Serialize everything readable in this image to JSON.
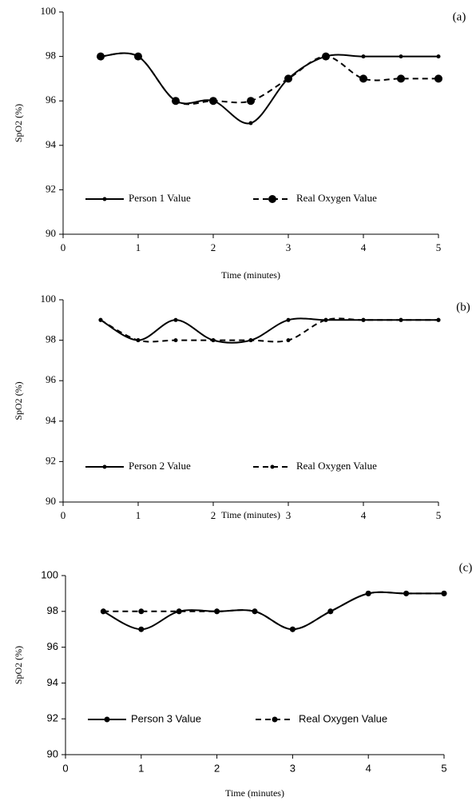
{
  "chart_data": [
    {
      "type": "line",
      "annotation": "(a)",
      "x_label": "Time (minutes)",
      "y_label": "SpO2 (%)",
      "x": [
        0.5,
        1,
        1.5,
        2,
        2.5,
        3,
        3.5,
        4,
        4.5,
        5
      ],
      "series": [
        {
          "name": "Person 1 Value",
          "color": "#000000",
          "line_style": "solid",
          "marker_size": 2.5,
          "values": [
            98,
            98,
            96,
            96,
            95,
            97,
            98,
            98,
            98,
            98
          ]
        },
        {
          "name": "Real Oxygen Value",
          "color": "#000000",
          "line_style": "dashed",
          "marker_size": 5,
          "values": [
            98,
            98,
            96,
            96,
            96,
            97,
            98,
            97,
            97,
            97
          ]
        }
      ],
      "xlim": [
        0,
        5
      ],
      "xticks": [
        0,
        1,
        2,
        3,
        4,
        5
      ],
      "ylim": [
        90,
        100
      ],
      "yticks": [
        90,
        92,
        94,
        96,
        98,
        100
      ],
      "legend": "lower center"
    },
    {
      "type": "line",
      "annotation": "(b)",
      "x_label": "Time (minutes)",
      "y_label": "SpO2 (%)",
      "x": [
        0.5,
        1,
        1.5,
        2,
        2.5,
        3,
        3.5,
        4,
        4.5,
        5
      ],
      "series": [
        {
          "name": "Person 2 Value",
          "color": "#000000",
          "line_style": "solid",
          "marker_size": 2.5,
          "values": [
            99,
            98,
            99,
            98,
            98,
            99,
            99,
            99,
            99,
            99
          ]
        },
        {
          "name": "Real Oxygen Value",
          "color": "#000000",
          "line_style": "dashed",
          "marker_size": 2.5,
          "values": [
            99,
            98,
            98,
            98,
            98,
            98,
            99,
            99,
            99,
            99
          ]
        }
      ],
      "xlim": [
        0,
        5
      ],
      "xticks": [
        0,
        1,
        2,
        3,
        4,
        5
      ],
      "ylim": [
        90,
        100
      ],
      "yticks": [
        90,
        92,
        94,
        96,
        98,
        100
      ],
      "legend": "lower center"
    },
    {
      "type": "line",
      "annotation": "(c)",
      "x_label": "Time (minutes)",
      "y_label": "SpO2 (%)",
      "x": [
        0.5,
        1,
        1.5,
        2,
        2.5,
        3,
        3.5,
        4,
        4.5,
        5
      ],
      "series": [
        {
          "name": "Person 3 Value",
          "color": "#000000",
          "line_style": "solid",
          "marker_size": 3.5,
          "values": [
            98,
            97,
            98,
            98,
            98,
            97,
            98,
            99,
            99,
            99
          ]
        },
        {
          "name": "Real Oxygen Value",
          "color": "#000000",
          "line_style": "dashed",
          "marker_size": 3.5,
          "values": [
            98,
            98,
            98,
            98,
            98,
            97,
            98,
            99,
            99,
            99
          ]
        }
      ],
      "xlim": [
        0,
        5
      ],
      "xticks": [
        0,
        1,
        2,
        3,
        4,
        5
      ],
      "ylim": [
        90,
        100
      ],
      "yticks": [
        90,
        92,
        94,
        96,
        98,
        100
      ],
      "legend": "lower center"
    }
  ]
}
